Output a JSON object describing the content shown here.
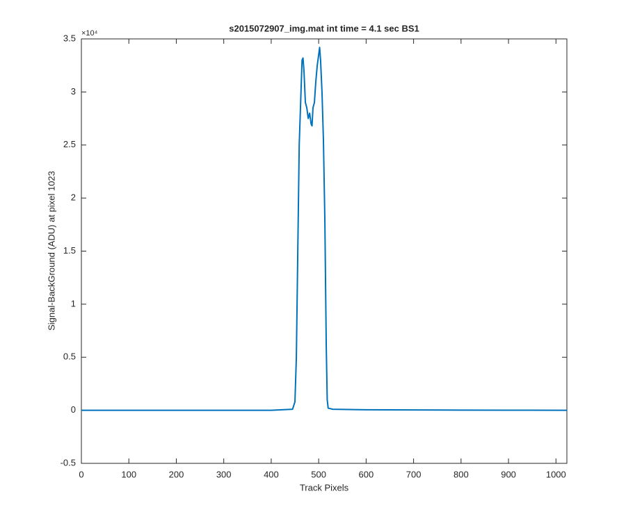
{
  "chart_data": {
    "type": "line",
    "title": "s2015072907_img.mat int time = 4.1 sec   BS1",
    "x_label": "Track Pixels",
    "y_label": "Signal-BackGround (ADU) at pixel 1023",
    "y_exponent_label": "×10⁴",
    "x": [
      0,
      100,
      200,
      300,
      400,
      445,
      450,
      453,
      456,
      459,
      462,
      465,
      467,
      469,
      472,
      475,
      478,
      481,
      484,
      486,
      488,
      491,
      494,
      497,
      500,
      502,
      504,
      507,
      510,
      513,
      516,
      518,
      520,
      530,
      600,
      700,
      800,
      900,
      1023
    ],
    "series": [
      {
        "color": "#0072bd",
        "values": [
          0,
          0,
          0,
          0,
          0,
          100,
          800,
          5000,
          15000,
          25000,
          29000,
          33000,
          33200,
          32000,
          29000,
          28500,
          27500,
          28000,
          27000,
          26800,
          28500,
          29000,
          31000,
          32500,
          33500,
          34200,
          33000,
          30000,
          25500,
          18000,
          6000,
          1000,
          200,
          100,
          50,
          30,
          20,
          10,
          0
        ]
      }
    ],
    "xlim": [
      0,
      1023
    ],
    "xticks": [
      0,
      100,
      200,
      300,
      400,
      500,
      600,
      700,
      800,
      900,
      1000
    ],
    "ylim": [
      -5000,
      35000
    ],
    "yticks": [
      {
        "value": -5000,
        "label": "-0.5"
      },
      {
        "value": 0,
        "label": "0"
      },
      {
        "value": 5000,
        "label": "0.5"
      },
      {
        "value": 10000,
        "label": "1"
      },
      {
        "value": 15000,
        "label": "1.5"
      },
      {
        "value": 20000,
        "label": "2"
      },
      {
        "value": 25000,
        "label": "2.5"
      },
      {
        "value": 30000,
        "label": "3"
      },
      {
        "value": 35000,
        "label": "3.5"
      }
    ],
    "grid": false
  }
}
